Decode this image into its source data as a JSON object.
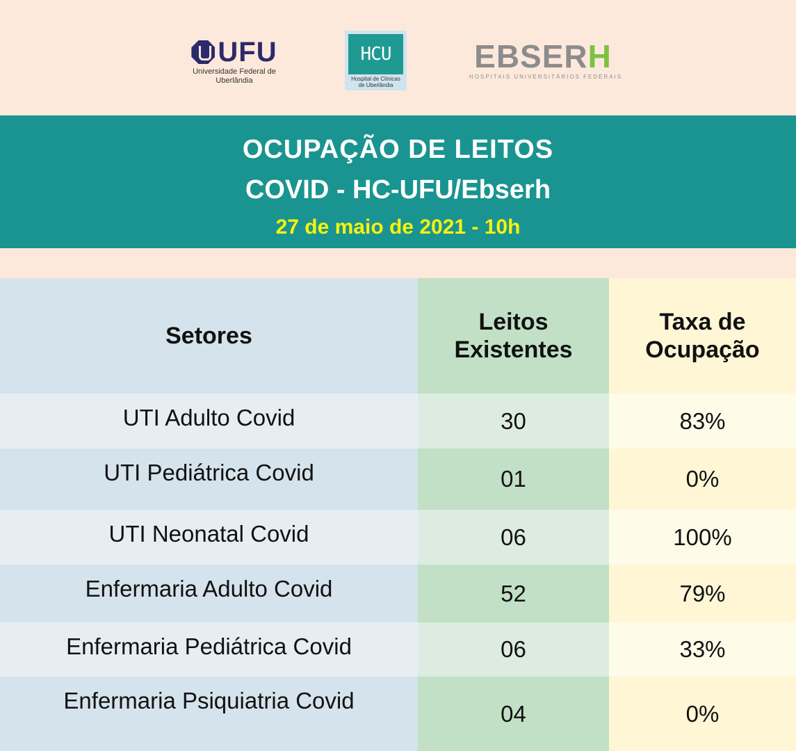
{
  "logos": {
    "ufu": {
      "mark": "UFU",
      "subtitle_line1": "Universidade Federal de",
      "subtitle_line2": "Uberlândia"
    },
    "hc": {
      "mark": "HCU",
      "subtitle_line1": "Hospital de Clínicas",
      "subtitle_line2": "de Uberlândia"
    },
    "ebserh": {
      "mark_main": "EBSER",
      "mark_accent": "H",
      "subtitle": "HOSPITAIS UNIVERSITÁRIOS FEDERAIS"
    }
  },
  "header": {
    "title_line1": "OCUPAÇÃO DE LEITOS",
    "title_line2": "COVID - HC-UFU/Ebserh",
    "date": "27 de maio de 2021 - 10h"
  },
  "colors": {
    "band": "#1a9490",
    "date": "#f7f30f",
    "background": "#fde9db"
  },
  "table": {
    "headers": {
      "setores": "Setores",
      "leitos_line1": "Leitos",
      "leitos_line2": "Existentes",
      "taxa_line1": "Taxa de",
      "taxa_line2": "Ocupação"
    },
    "rows": [
      {
        "setor": "UTI Adulto Covid",
        "leitos": "30",
        "taxa": "83%"
      },
      {
        "setor": "UTI Pediátrica Covid",
        "leitos": "01",
        "taxa": "0%"
      },
      {
        "setor": "UTI Neonatal Covid",
        "leitos": "06",
        "taxa": "100%"
      },
      {
        "setor": "Enfermaria Adulto Covid",
        "leitos": "52",
        "taxa": "79%"
      },
      {
        "setor": "Enfermaria Pediátrica Covid",
        "leitos": "06",
        "taxa": "33%"
      },
      {
        "setor": "Enfermaria Psiquiatria Covid",
        "leitos": "04",
        "taxa": "0%"
      }
    ]
  }
}
